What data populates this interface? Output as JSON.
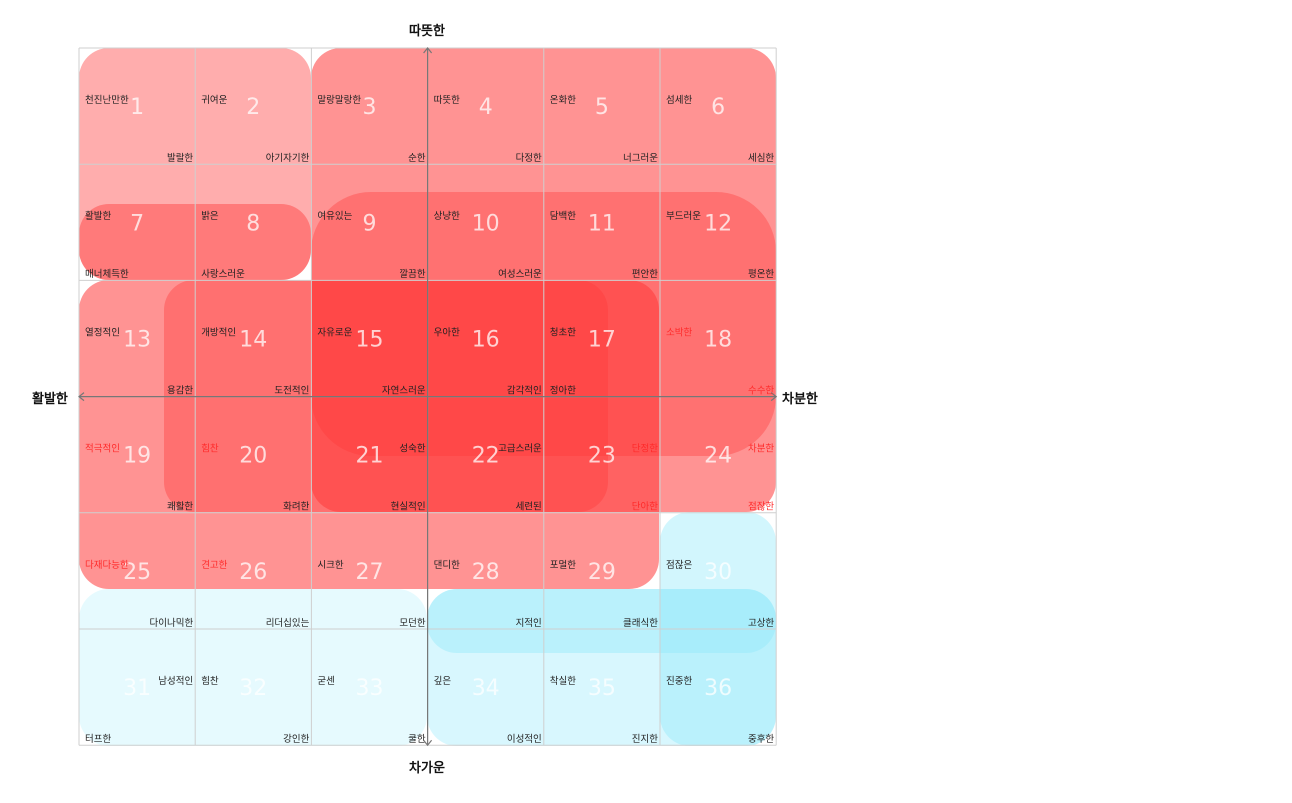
{
  "axes": {
    "top": "따뜻한",
    "bottom": "차가운",
    "left": "활발한",
    "right": "차분한"
  },
  "colors": {
    "grid_line": "#cfcfcf",
    "axis_line": "#777777",
    "word_default": "#222222",
    "word_highlight": "#ff2a2a",
    "red_region": "#ff3b3b",
    "cyan_region": "#8ee9fb"
  },
  "cells": [
    {
      "n": "1",
      "words": [
        {
          "t": "천진난만한",
          "p": "tl"
        },
        {
          "t": "발랄한",
          "p": "br"
        }
      ]
    },
    {
      "n": "2",
      "words": [
        {
          "t": "귀여운",
          "p": "tl"
        },
        {
          "t": "아기자기한",
          "p": "br"
        }
      ]
    },
    {
      "n": "3",
      "words": [
        {
          "t": "말랑말랑한",
          "p": "tl"
        },
        {
          "t": "순한",
          "p": "br"
        }
      ]
    },
    {
      "n": "4",
      "words": [
        {
          "t": "따뜻한",
          "p": "tl"
        },
        {
          "t": "다정한",
          "p": "br"
        }
      ]
    },
    {
      "n": "5",
      "words": [
        {
          "t": "온화한",
          "p": "tl"
        },
        {
          "t": "너그러운",
          "p": "br"
        }
      ]
    },
    {
      "n": "6",
      "words": [
        {
          "t": "섬세한",
          "p": "tl"
        },
        {
          "t": "세심한",
          "p": "br"
        }
      ]
    },
    {
      "n": "7",
      "words": [
        {
          "t": "활발한",
          "p": "tl"
        },
        {
          "t": "매너체득한",
          "p": "bl"
        }
      ]
    },
    {
      "n": "8",
      "words": [
        {
          "t": "밝은",
          "p": "tl"
        },
        {
          "t": "사랑스러운",
          "p": "bl"
        }
      ]
    },
    {
      "n": "9",
      "words": [
        {
          "t": "여유있는",
          "p": "tl"
        },
        {
          "t": "깔끔한",
          "p": "br"
        }
      ]
    },
    {
      "n": "10",
      "words": [
        {
          "t": "상냥한",
          "p": "tl"
        },
        {
          "t": "여성스러운",
          "p": "br"
        }
      ]
    },
    {
      "n": "11",
      "words": [
        {
          "t": "담백한",
          "p": "tl"
        },
        {
          "t": "편안한",
          "p": "br"
        }
      ]
    },
    {
      "n": "12",
      "words": [
        {
          "t": "부드러운",
          "p": "tl"
        },
        {
          "t": "평온한",
          "p": "br"
        }
      ]
    },
    {
      "n": "13",
      "words": [
        {
          "t": "열정적인",
          "p": "tl"
        },
        {
          "t": "용감한",
          "p": "br"
        }
      ]
    },
    {
      "n": "14",
      "words": [
        {
          "t": "개방적인",
          "p": "tl"
        },
        {
          "t": "도전적인",
          "p": "br"
        }
      ]
    },
    {
      "n": "15",
      "words": [
        {
          "t": "자유로운",
          "p": "tl"
        },
        {
          "t": "자연스러운",
          "p": "br"
        }
      ]
    },
    {
      "n": "16",
      "words": [
        {
          "t": "우아한",
          "p": "tl"
        },
        {
          "t": "감각적인",
          "p": "br"
        }
      ]
    },
    {
      "n": "17",
      "words": [
        {
          "t": "청초한",
          "p": "tl"
        },
        {
          "t": "정아한",
          "p": "bl"
        }
      ]
    },
    {
      "n": "18",
      "words": [
        {
          "t": "소박한",
          "p": "tl",
          "hl": true
        },
        {
          "t": "수수한",
          "p": "br",
          "hl": true
        }
      ]
    },
    {
      "n": "19",
      "words": [
        {
          "t": "적극적인",
          "p": "tl",
          "hl": true
        },
        {
          "t": "쾌활한",
          "p": "br"
        }
      ]
    },
    {
      "n": "20",
      "words": [
        {
          "t": "힘찬",
          "p": "tl",
          "hl": true
        },
        {
          "t": "화려한",
          "p": "br"
        }
      ]
    },
    {
      "n": "21",
      "words": [
        {
          "t": "성숙한",
          "p": "tr"
        },
        {
          "t": "현실적인",
          "p": "br"
        }
      ]
    },
    {
      "n": "22",
      "words": [
        {
          "t": "고급스러운",
          "p": "tr"
        },
        {
          "t": "세련된",
          "p": "br"
        }
      ]
    },
    {
      "n": "23",
      "words": [
        {
          "t": "단정한",
          "p": "tr",
          "hl": true
        },
        {
          "t": "단아한",
          "p": "br",
          "hl": true
        }
      ]
    },
    {
      "n": "24",
      "words": [
        {
          "t": "차분한",
          "p": "tr",
          "hl": true
        },
        {
          "t": "점잖한",
          "p": "br",
          "hl": true
        }
      ]
    },
    {
      "n": "25",
      "words": [
        {
          "t": "다재다능한",
          "p": "tl",
          "hl": true
        }
      ]
    },
    {
      "n": "26",
      "words": [
        {
          "t": "견고한",
          "p": "tl",
          "hl": true
        }
      ]
    },
    {
      "n": "27",
      "words": [
        {
          "t": "시크한",
          "p": "tl"
        }
      ]
    },
    {
      "n": "28",
      "words": [
        {
          "t": "댄디한",
          "p": "tl"
        }
      ]
    },
    {
      "n": "29",
      "words": [
        {
          "t": "포멀한",
          "p": "tl"
        }
      ]
    },
    {
      "n": "30",
      "words": [
        {
          "t": "점잖은",
          "p": "tl"
        }
      ]
    },
    {
      "n": "31",
      "words": [
        {
          "t": "다이나믹한",
          "p": "tr"
        },
        {
          "t": "남성적인",
          "p": "mr"
        },
        {
          "t": "터프한",
          "p": "bl"
        }
      ]
    },
    {
      "n": "32",
      "words": [
        {
          "t": "리더십있는",
          "p": "tr"
        },
        {
          "t": "힘찬",
          "p": "ml"
        },
        {
          "t": "강인한",
          "p": "br"
        }
      ]
    },
    {
      "n": "33",
      "words": [
        {
          "t": "모던한",
          "p": "tr"
        },
        {
          "t": "굳센",
          "p": "ml"
        },
        {
          "t": "쿨한",
          "p": "br"
        }
      ]
    },
    {
      "n": "34",
      "words": [
        {
          "t": "지적인",
          "p": "tr"
        },
        {
          "t": "깊은",
          "p": "ml"
        },
        {
          "t": "이성적인",
          "p": "br"
        }
      ]
    },
    {
      "n": "35",
      "words": [
        {
          "t": "클래식한",
          "p": "tr"
        },
        {
          "t": "착실한",
          "p": "ml"
        },
        {
          "t": "진지한",
          "p": "br"
        }
      ]
    },
    {
      "n": "36",
      "words": [
        {
          "t": "고상한",
          "p": "tr"
        },
        {
          "t": "진중한",
          "p": "ml"
        },
        {
          "t": "중후한",
          "p": "br"
        }
      ]
    }
  ]
}
